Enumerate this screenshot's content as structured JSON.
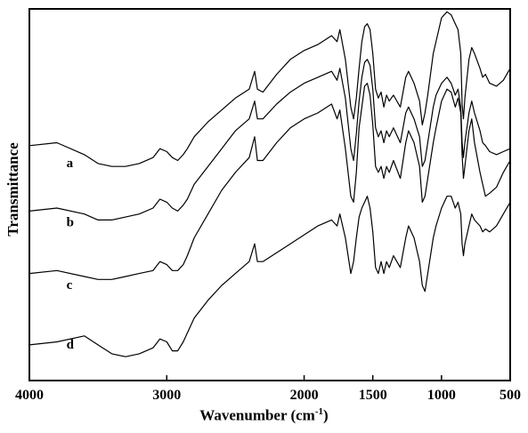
{
  "chart_data": {
    "type": "line",
    "title": "",
    "xlabel": "Wavenumber (cm",
    "xlabel_sup": "-1",
    "xlabel_close": ")",
    "ylabel": "Transmittance",
    "xlim": [
      4000,
      500
    ],
    "x_reversed": true,
    "x_ticks": [
      4000,
      3000,
      2000,
      1500,
      1000,
      500
    ],
    "y_tick_labels": false,
    "grid": false,
    "legend": "none",
    "line_color": "#000000",
    "series": [
      {
        "name": "a",
        "x": [
          4000,
          3800,
          3600,
          3500,
          3400,
          3300,
          3200,
          3100,
          3050,
          3000,
          2960,
          2920,
          2880,
          2850,
          2800,
          2700,
          2600,
          2500,
          2400,
          2360,
          2340,
          2300,
          2200,
          2100,
          2000,
          1900,
          1800,
          1760,
          1740,
          1700,
          1660,
          1640,
          1620,
          1600,
          1580,
          1560,
          1540,
          1520,
          1500,
          1480,
          1460,
          1440,
          1420,
          1400,
          1380,
          1350,
          1300,
          1260,
          1240,
          1200,
          1160,
          1140,
          1120,
          1100,
          1060,
          1040,
          1000,
          960,
          930,
          900,
          880,
          860,
          850,
          840,
          830,
          800,
          780,
          760,
          720,
          700,
          680,
          650,
          600,
          550,
          500
        ],
        "y": [
          79,
          80,
          76,
          73,
          72,
          72,
          73,
          75,
          78,
          77,
          75,
          74,
          76,
          78,
          82,
          87,
          91,
          95,
          98,
          104,
          98,
          97,
          103,
          108,
          111,
          113,
          116,
          114,
          118,
          108,
          92,
          88,
          95,
          105,
          114,
          119,
          120,
          118,
          110,
          98,
          95,
          97,
          92,
          96,
          94,
          96,
          92,
          102,
          104,
          100,
          94,
          86,
          90,
          96,
          110,
          114,
          122,
          124,
          123,
          120,
          118,
          110,
          93,
          88,
          95,
          108,
          112,
          110,
          105,
          102,
          103,
          100,
          99,
          101,
          105
        ]
      },
      {
        "name": "b",
        "x": [
          4000,
          3800,
          3600,
          3500,
          3400,
          3300,
          3200,
          3100,
          3050,
          3000,
          2960,
          2920,
          2880,
          2850,
          2800,
          2700,
          2600,
          2500,
          2400,
          2360,
          2340,
          2300,
          2200,
          2100,
          2000,
          1900,
          1800,
          1760,
          1740,
          1700,
          1660,
          1640,
          1620,
          1600,
          1580,
          1560,
          1540,
          1520,
          1500,
          1480,
          1460,
          1440,
          1420,
          1400,
          1380,
          1350,
          1300,
          1260,
          1240,
          1200,
          1160,
          1140,
          1120,
          1100,
          1060,
          1040,
          1000,
          960,
          930,
          900,
          880,
          860,
          850,
          840,
          830,
          800,
          780,
          760,
          720,
          700,
          680,
          650,
          600,
          550,
          500
        ],
        "y": [
          57,
          58,
          56,
          54,
          54,
          55,
          56,
          58,
          61,
          60,
          58,
          57,
          59,
          61,
          66,
          72,
          78,
          84,
          88,
          94,
          88,
          88,
          93,
          97,
          100,
          102,
          104,
          101,
          105,
          95,
          78,
          74,
          83,
          94,
          102,
          107,
          108,
          106,
          98,
          85,
          82,
          84,
          80,
          84,
          82,
          85,
          80,
          90,
          92,
          88,
          82,
          72,
          74,
          80,
          92,
          96,
          100,
          102,
          100,
          96,
          98,
          92,
          80,
          75,
          80,
          90,
          94,
          90,
          84,
          80,
          79,
          77,
          76,
          77,
          78
        ]
      },
      {
        "name": "c",
        "x": [
          4000,
          3800,
          3600,
          3500,
          3400,
          3300,
          3200,
          3100,
          3050,
          3000,
          2960,
          2920,
          2880,
          2850,
          2800,
          2700,
          2600,
          2500,
          2400,
          2360,
          2340,
          2300,
          2200,
          2100,
          2000,
          1900,
          1800,
          1760,
          1740,
          1700,
          1660,
          1640,
          1620,
          1600,
          1580,
          1560,
          1540,
          1520,
          1500,
          1480,
          1460,
          1440,
          1420,
          1400,
          1380,
          1350,
          1300,
          1260,
          1240,
          1200,
          1160,
          1140,
          1120,
          1100,
          1060,
          1040,
          1000,
          960,
          930,
          900,
          880,
          860,
          850,
          840,
          830,
          800,
          780,
          760,
          720,
          700,
          680,
          650,
          600,
          550,
          500
        ],
        "y": [
          36,
          37,
          35,
          34,
          34,
          35,
          36,
          37,
          40,
          39,
          37,
          37,
          39,
          42,
          48,
          56,
          64,
          70,
          75,
          82,
          74,
          74,
          80,
          85,
          88,
          90,
          93,
          88,
          91,
          78,
          62,
          60,
          70,
          85,
          92,
          99,
          100,
          96,
          86,
          72,
          70,
          72,
          68,
          72,
          70,
          74,
          68,
          80,
          84,
          80,
          72,
          60,
          62,
          68,
          80,
          85,
          94,
          98,
          97,
          92,
          95,
          90,
          76,
          68,
          72,
          84,
          88,
          80,
          70,
          66,
          62,
          63,
          65,
          70,
          74
        ]
      },
      {
        "name": "d",
        "x": [
          4000,
          3800,
          3600,
          3500,
          3400,
          3300,
          3200,
          3100,
          3050,
          3000,
          2960,
          2920,
          2880,
          2850,
          2800,
          2700,
          2600,
          2500,
          2400,
          2360,
          2340,
          2300,
          2200,
          2100,
          2000,
          1900,
          1800,
          1760,
          1740,
          1700,
          1660,
          1640,
          1620,
          1600,
          1580,
          1560,
          1540,
          1520,
          1500,
          1480,
          1460,
          1440,
          1420,
          1400,
          1380,
          1350,
          1300,
          1260,
          1240,
          1200,
          1160,
          1140,
          1120,
          1100,
          1060,
          1040,
          1000,
          960,
          930,
          900,
          880,
          860,
          850,
          840,
          830,
          800,
          780,
          760,
          720,
          700,
          680,
          650,
          600,
          550,
          500
        ],
        "y": [
          12,
          13,
          15,
          12,
          9,
          8,
          9,
          11,
          14,
          13,
          10,
          10,
          13,
          16,
          21,
          27,
          32,
          36,
          40,
          46,
          40,
          40,
          43,
          46,
          49,
          52,
          54,
          52,
          56,
          48,
          36,
          40,
          48,
          55,
          58,
          60,
          62,
          58,
          50,
          38,
          36,
          40,
          36,
          40,
          38,
          42,
          38,
          48,
          52,
          48,
          40,
          32,
          30,
          36,
          48,
          52,
          58,
          62,
          62,
          58,
          60,
          56,
          46,
          42,
          46,
          52,
          56,
          54,
          52,
          50,
          51,
          50,
          52,
          56,
          60
        ]
      }
    ]
  }
}
